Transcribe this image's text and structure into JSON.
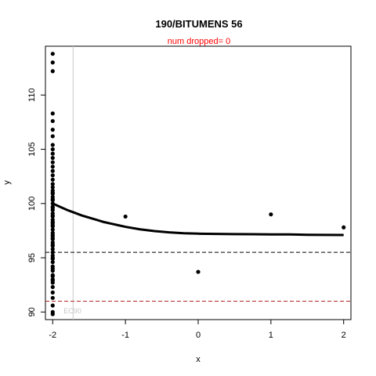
{
  "chart_data": {
    "type": "scatter",
    "title": "190/BITUMENS 56",
    "subtitle": "num dropped= 0",
    "xlabel": "x",
    "ylabel": "y",
    "xlim": [
      -2.1,
      2.1
    ],
    "ylim": [
      89.3,
      114.5
    ],
    "xticks": [
      -2,
      -1,
      0,
      1,
      2
    ],
    "yticks": [
      90,
      95,
      100,
      105,
      110
    ],
    "points_x": [
      -2,
      -2,
      -2,
      -2,
      -2,
      -2,
      -2,
      -2,
      -2,
      -2,
      -2,
      -2,
      -2,
      -2,
      -2,
      -2,
      -2,
      -2,
      -2,
      -2,
      -2,
      -2,
      -2,
      -2,
      -2,
      -2,
      -2,
      -2,
      -2,
      -2,
      -2,
      -2,
      -2,
      -2,
      -2,
      -2,
      -2,
      -2,
      -2,
      -2,
      -2,
      -2,
      -2,
      -2,
      -2,
      -2,
      -2,
      -2,
      -2,
      -2,
      -2,
      -2,
      -2,
      -2,
      -2,
      -2,
      -2,
      -2,
      -2,
      -2,
      -2,
      -2,
      -2,
      -2,
      -2,
      -1,
      0,
      1,
      2
    ],
    "points_y": [
      113.8,
      113.0,
      112.2,
      108.3,
      107.6,
      106.8,
      106.2,
      105.4,
      105.0,
      104.6,
      104.2,
      103.8,
      103.4,
      103.0,
      102.6,
      102.2,
      101.8,
      101.5,
      101.2,
      100.9,
      100.6,
      100.3,
      100.0,
      99.7,
      99.4,
      99.1,
      98.8,
      98.5,
      98.2,
      97.9,
      97.6,
      97.3,
      97.0,
      96.7,
      96.4,
      96.1,
      95.8,
      95.5,
      95.2,
      94.9,
      94.6,
      94.2,
      93.8,
      93.4,
      93.0,
      92.7,
      92.3,
      91.8,
      91.3,
      90.6,
      90.0,
      89.8,
      101.0,
      99.6,
      98.9,
      98.0,
      97.1,
      96.2,
      95.0,
      94.0,
      93.3,
      92.9,
      100.4,
      98.3,
      96.8,
      98.8,
      93.7,
      99.0,
      97.8
    ],
    "curve_x": [
      -2.0,
      -1.9,
      -1.8,
      -1.7,
      -1.6,
      -1.5,
      -1.4,
      -1.3,
      -1.2,
      -1.1,
      -1.0,
      -0.8,
      -0.6,
      -0.4,
      -0.2,
      0.0,
      0.25,
      0.5,
      0.75,
      1.0,
      1.25,
      1.5,
      1.75,
      2.0
    ],
    "curve_y": [
      100.0,
      99.7,
      99.4,
      99.15,
      98.9,
      98.7,
      98.5,
      98.3,
      98.15,
      98.0,
      97.85,
      97.62,
      97.46,
      97.34,
      97.26,
      97.22,
      97.2,
      97.18,
      97.17,
      97.15,
      97.15,
      97.12,
      97.11,
      97.1
    ],
    "ref_hline_dashed_black": 95.5,
    "ref_hline_dashed_red": 91.0,
    "ref_vline_x": -1.72,
    "ref_vline_label": "EC90",
    "colors": {
      "points": "#000000",
      "curve": "#000000",
      "hline_black": "#000000",
      "hline_red": "#b22222",
      "vline": "#c8c8c8",
      "subtitle": "#ff0000"
    },
    "grid": false,
    "legend": "none"
  }
}
